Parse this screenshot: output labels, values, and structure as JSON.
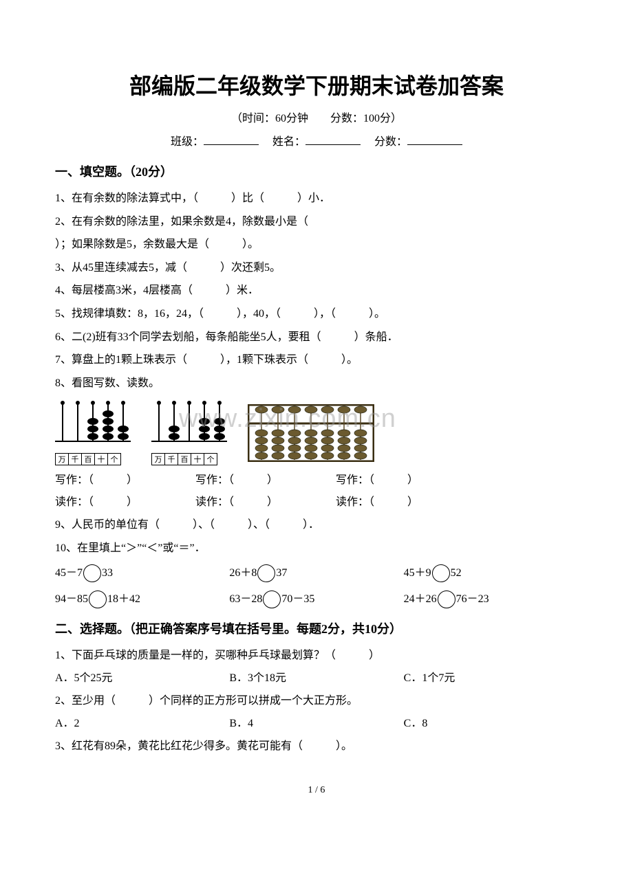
{
  "title": "部编版二年级数学下册期末试卷加答案",
  "meta": "（时间：60分钟　　分数：100分）",
  "header": {
    "class_label": "班级：",
    "name_label": "姓名：",
    "score_label": "分数："
  },
  "section1": {
    "head": "一、填空题。（20分）",
    "q1": "1、在有余数的除法算式中，（　　　）比（　　　）小．",
    "q2a": "2、在有余数的除法里，如果余数是4，除数最小是（",
    "q2b": "）；如果除数是5，余数最大是（　　　）。",
    "q3": "3、从45里连续减去5，减（　　　）次还剩5。",
    "q4": "4、每层楼高3米，4层楼高（　　　）米．",
    "q5": "5、找规律填数：8，16，24，（　　　），40，（　　　），（　　　）。",
    "q6": "6、二(2)班有33个同学去划船，每条船能坐5人，要租（　　　）条船．",
    "q7": "7、算盘上的1颗上珠表示（　　　），1颗下珠表示（　　　）。",
    "q8": "8、看图写数、读数。",
    "write_label": "写作：（　　　）",
    "read_label": "读作：（　　　）",
    "q9": "9、人民币的单位有（　　　）、（　　　）、（　　　）．",
    "q10": "10、在里填上“＞”“＜”或“＝”．",
    "cmp": {
      "r1c1a": "45－7",
      "r1c1b": "33",
      "r1c2a": "26＋8",
      "r1c2b": "37",
      "r1c3a": "45＋9",
      "r1c3b": "52",
      "r2c1a": "94－85",
      "r2c1b": "18＋42",
      "r2c2a": "63－28",
      "r2c2b": "70－35",
      "r2c3a": "24＋26",
      "r2c3b": "76－23"
    }
  },
  "section2": {
    "head": "二、选择题。（把正确答案序号填在括号里。每题2分，共10分）",
    "q1": "1、下面乒乓球的质量是一样的，买哪种乒乓球最划算？（　　　）",
    "q1a": "A．5个25元",
    "q1b": "B．3个18元",
    "q1c": "C．1个7元",
    "q2": "2、至少用（　　　）个同样的正方形可以拼成一个大正方形。",
    "q2a": "A．2",
    "q2b": "B．4",
    "q2c": "C．8",
    "q3": "3、红花有89朵，黄花比红花少得多。黄花可能有（　　　）。"
  },
  "watermark": "www.zixin.com.cn",
  "page_no": "1 / 6",
  "abacus": {
    "col_labels": [
      "万",
      "千",
      "百",
      "十",
      "个"
    ],
    "fig1": {
      "rods": 5,
      "beads_up": [
        0,
        0,
        0,
        0,
        0
      ],
      "beads_down": [
        0,
        0,
        3,
        4,
        2
      ],
      "rod_color": "#000000",
      "bead_color": "#000000"
    },
    "fig2": {
      "rods": 5,
      "beads_up": [
        0,
        0,
        0,
        0,
        0
      ],
      "beads_down": [
        0,
        2,
        0,
        3,
        3
      ],
      "rod_color": "#000000",
      "bead_color": "#000000"
    },
    "fig3": {
      "rods": 7,
      "beads_up": [
        1,
        1,
        1,
        1,
        1,
        1,
        1
      ],
      "beads_down": [
        4,
        4,
        4,
        4,
        4,
        4,
        4
      ],
      "rod_color": "#5a4a2a",
      "bead_color": "#6b5a2f",
      "frame_color": "#3a2e12"
    }
  }
}
